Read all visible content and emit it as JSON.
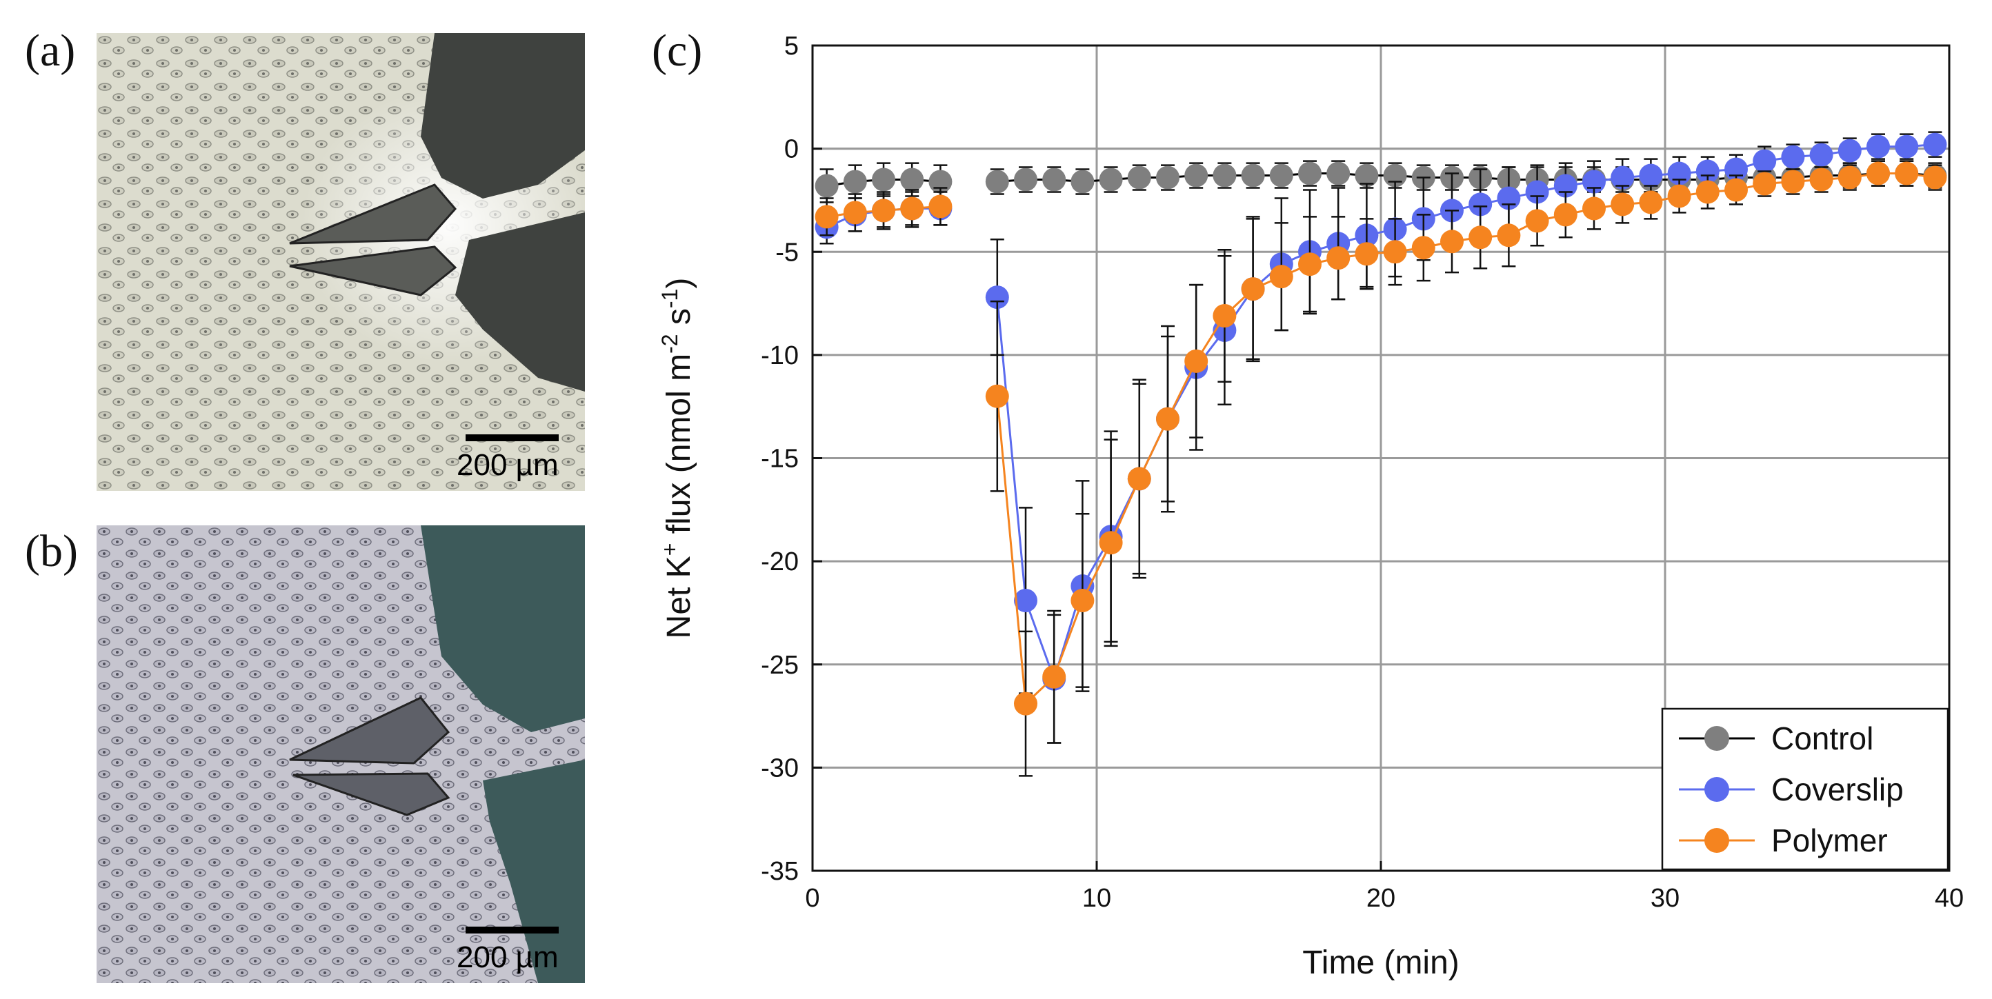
{
  "figure": {
    "labels": {
      "a": "(a)",
      "b": "(b)",
      "c": "(c)"
    },
    "scale_bar_a": "200 µm",
    "scale_bar_b": "200 µm"
  },
  "chart_data": {
    "type": "scatter",
    "title": "",
    "xlabel": "Time (min)",
    "ylabel_parts": {
      "pre": "Net K",
      "sup1": "+",
      "mid": " flux (nmol m",
      "sup2": "-2",
      "mid2": " s",
      "sup3": "-1",
      "post": ")"
    },
    "xlim": [
      0,
      40
    ],
    "ylim": [
      -35,
      5
    ],
    "xticks": [
      0,
      10,
      20,
      30,
      40
    ],
    "yticks": [
      5,
      0,
      -5,
      -10,
      -15,
      -20,
      -25,
      -30,
      -35
    ],
    "grid": true,
    "legend_position": "bottom-right",
    "colors": {
      "Control": "#7f7f7f",
      "Coverslip": "#5b6bee",
      "Polymer": "#f5841f",
      "Control_line": "#000000"
    },
    "series": [
      {
        "name": "Control",
        "x": [
          0.5,
          1.5,
          2.5,
          3.5,
          4.5,
          6.5,
          7.5,
          8.5,
          9.5,
          10.5,
          11.5,
          12.5,
          13.5,
          14.5,
          15.5,
          16.5,
          17.5,
          18.5,
          19.5,
          20.5,
          21.5,
          22.5,
          23.5,
          24.5,
          25.5,
          26.5,
          27.5,
          28.5,
          29.5,
          30.5,
          31.5,
          32.5,
          33.5,
          34.5,
          35.5,
          36.5,
          37.5,
          38.5,
          39.5
        ],
        "y": [
          -1.8,
          -1.6,
          -1.5,
          -1.5,
          -1.6,
          -1.6,
          -1.5,
          -1.5,
          -1.6,
          -1.5,
          -1.4,
          -1.4,
          -1.3,
          -1.3,
          -1.3,
          -1.3,
          -1.2,
          -1.2,
          -1.3,
          -1.3,
          -1.4,
          -1.4,
          -1.4,
          -1.5,
          -1.5,
          -1.5,
          -1.5,
          -1.5,
          -1.5,
          -1.5,
          -1.5,
          -1.4,
          -1.4,
          -1.4,
          -1.3,
          -1.3,
          -1.2,
          -1.2,
          -1.3
        ],
        "err": [
          0.8,
          0.8,
          0.8,
          0.8,
          0.8,
          0.6,
          0.6,
          0.6,
          0.6,
          0.6,
          0.6,
          0.6,
          0.6,
          0.6,
          0.6,
          0.6,
          0.6,
          0.6,
          0.6,
          0.6,
          0.6,
          0.6,
          0.6,
          0.6,
          0.6,
          0.6,
          0.6,
          0.6,
          0.6,
          0.6,
          0.6,
          0.6,
          0.6,
          0.6,
          0.6,
          0.6,
          0.6,
          0.6,
          0.6
        ],
        "gap_after_index": 4
      },
      {
        "name": "Coverslip",
        "x": [
          0.5,
          1.5,
          2.5,
          3.5,
          4.5,
          6.5,
          7.5,
          8.5,
          9.5,
          10.5,
          11.5,
          12.5,
          13.5,
          14.5,
          15.5,
          16.5,
          17.5,
          18.5,
          19.5,
          20.5,
          21.5,
          22.5,
          23.5,
          24.5,
          25.5,
          26.5,
          27.5,
          28.5,
          29.5,
          30.5,
          31.5,
          32.5,
          33.5,
          34.5,
          35.5,
          36.5,
          37.5,
          38.5,
          39.5
        ],
        "y": [
          -3.8,
          -3.2,
          -3.0,
          -2.9,
          -2.9,
          -7.2,
          -21.9,
          -25.7,
          -21.2,
          -18.8,
          -16.0,
          -13.1,
          -10.6,
          -8.8,
          -6.8,
          -5.6,
          -5.0,
          -4.6,
          -4.2,
          -3.9,
          -3.4,
          -3.0,
          -2.7,
          -2.4,
          -2.1,
          -1.8,
          -1.6,
          -1.4,
          -1.3,
          -1.2,
          -1.1,
          -1.0,
          -0.6,
          -0.4,
          -0.3,
          -0.1,
          0.1,
          0.1,
          0.2
        ],
        "err": [
          0.8,
          0.8,
          0.8,
          0.8,
          0.8,
          2.8,
          4.5,
          3.1,
          5.1,
          5.1,
          4.6,
          4.0,
          4.0,
          3.6,
          3.4,
          3.2,
          3.0,
          2.7,
          2.5,
          2.3,
          2.0,
          1.8,
          1.7,
          1.5,
          1.3,
          1.1,
          1.0,
          0.9,
          0.8,
          0.8,
          0.7,
          0.7,
          0.7,
          0.6,
          0.6,
          0.6,
          0.6,
          0.6,
          0.6
        ],
        "gap_after_index": 4
      },
      {
        "name": "Polymer",
        "x": [
          0.5,
          1.5,
          2.5,
          3.5,
          4.5,
          6.5,
          7.5,
          8.5,
          9.5,
          10.5,
          11.5,
          12.5,
          13.5,
          14.5,
          15.5,
          16.5,
          17.5,
          18.5,
          19.5,
          20.5,
          21.5,
          22.5,
          23.5,
          24.5,
          25.5,
          26.5,
          27.5,
          28.5,
          29.5,
          30.5,
          31.5,
          32.5,
          33.5,
          34.5,
          35.5,
          36.5,
          37.5,
          38.5,
          39.5
        ],
        "y": [
          -3.3,
          -3.1,
          -3.0,
          -2.9,
          -2.8,
          -12.0,
          -26.9,
          -25.6,
          -21.9,
          -19.1,
          -16.0,
          -13.1,
          -10.3,
          -8.1,
          -6.8,
          -6.2,
          -5.6,
          -5.3,
          -5.1,
          -5.0,
          -4.8,
          -4.5,
          -4.3,
          -4.2,
          -3.5,
          -3.2,
          -2.9,
          -2.7,
          -2.6,
          -2.3,
          -2.1,
          -2.0,
          -1.7,
          -1.6,
          -1.5,
          -1.4,
          -1.2,
          -1.2,
          -1.4
        ],
        "err": [
          0.9,
          0.9,
          0.9,
          0.9,
          0.9,
          4.6,
          3.5,
          3.2,
          4.2,
          5.0,
          4.8,
          4.5,
          3.7,
          3.2,
          3.5,
          2.6,
          2.3,
          2.0,
          1.7,
          1.6,
          1.6,
          1.5,
          1.5,
          1.5,
          1.2,
          1.1,
          1.0,
          0.9,
          0.8,
          0.8,
          0.8,
          0.7,
          0.6,
          0.6,
          0.6,
          0.6,
          0.6,
          0.6,
          0.6
        ],
        "gap_after_index": 4
      }
    ],
    "legend": [
      "Control",
      "Coverslip",
      "Polymer"
    ]
  }
}
